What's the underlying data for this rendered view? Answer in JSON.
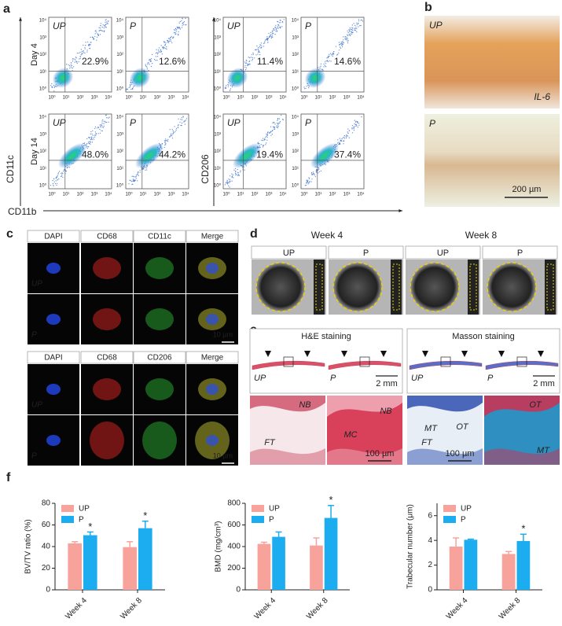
{
  "panel_labels": [
    "a",
    "b",
    "c",
    "d",
    "e",
    "f"
  ],
  "flow": {
    "row_labels": [
      "Day 4",
      "Day 14"
    ],
    "y_markers": [
      "CD11c",
      "CD206"
    ],
    "x_marker": "CD11b",
    "tick_labels": [
      "10⁰",
      "10¹",
      "10²",
      "10³",
      "10⁴"
    ],
    "plots": [
      [
        {
          "group": "UP",
          "percent": "22.9%"
        },
        {
          "group": "P",
          "percent": "12.6%"
        },
        {
          "group": "UP",
          "percent": "11.4%"
        },
        {
          "group": "P",
          "percent": "14.6%"
        }
      ],
      [
        {
          "group": "UP",
          "percent": "48.0%"
        },
        {
          "group": "P",
          "percent": "44.2%"
        },
        {
          "group": "UP",
          "percent": "19.4%"
        },
        {
          "group": "P",
          "percent": "37.4%"
        }
      ]
    ]
  },
  "histology": {
    "groups": [
      "UP",
      "P"
    ],
    "stain": "IL-6",
    "scale": "200 µm"
  },
  "immuno": [
    {
      "headers": [
        "DAPI",
        "CD68",
        "CD11c",
        "Merge"
      ],
      "rows": [
        "UP",
        "P"
      ],
      "scale": "10 µm"
    },
    {
      "headers": [
        "DAPI",
        "CD68",
        "CD206",
        "Merge"
      ],
      "rows": [
        "UP",
        "P"
      ],
      "scale": "10 µm"
    }
  ],
  "micro_ct": {
    "weeks": [
      "Week 4",
      "Week 8"
    ],
    "groups": [
      "UP",
      "P",
      "UP",
      "P"
    ]
  },
  "staining": [
    {
      "title": "H&E staining",
      "groups": [
        "UP",
        "P"
      ],
      "scale_low": "2 mm",
      "scale_high": "100 µm",
      "tissue_labels": [
        [
          "NB",
          "FT"
        ],
        [
          "NB",
          "MC"
        ]
      ]
    },
    {
      "title": "Masson staining",
      "groups": [
        "UP",
        "P"
      ],
      "scale_low": "2 mm",
      "scale_high": "100 µm",
      "tissue_labels": [
        [
          "MT",
          "OT",
          "FT"
        ],
        [
          "OT",
          "MT"
        ]
      ]
    }
  ],
  "chart_data": [
    {
      "type": "bar",
      "ylabel": "BV/TV ratio (%)",
      "categories": [
        "Week 4",
        "Week 8"
      ],
      "ylim": [
        0,
        80
      ],
      "yticks": [
        0,
        20,
        40,
        60,
        80
      ],
      "legend": "top-left",
      "series": [
        {
          "name": "UP",
          "color": "#f8a29c",
          "values": [
            43,
            39.5
          ],
          "errors": [
            1.5,
            5
          ]
        },
        {
          "name": "P",
          "color": "#1badef",
          "values": [
            50.5,
            57
          ],
          "errors": [
            3,
            6.5
          ],
          "significance": [
            "*",
            "*"
          ]
        }
      ]
    },
    {
      "type": "bar",
      "ylabel": "BMD (mg/cm³)",
      "categories": [
        "Week 4",
        "Week 8"
      ],
      "ylim": [
        0,
        800
      ],
      "yticks": [
        0,
        200,
        400,
        600,
        800
      ],
      "legend": "top-left",
      "series": [
        {
          "name": "UP",
          "color": "#f8a29c",
          "values": [
            425,
            410
          ],
          "errors": [
            15,
            70
          ]
        },
        {
          "name": "P",
          "color": "#1badef",
          "values": [
            490,
            665
          ],
          "errors": [
            45,
            115
          ],
          "significance": [
            null,
            "*"
          ]
        }
      ]
    },
    {
      "type": "bar",
      "ylabel": "Trabecular number (μm)",
      "categories": [
        "Week 4",
        "Week 8"
      ],
      "ylim": [
        0,
        7
      ],
      "yticks": [
        0,
        2,
        4,
        6
      ],
      "legend": "top-left",
      "series": [
        {
          "name": "UP",
          "color": "#f8a29c",
          "values": [
            3.5,
            2.9
          ],
          "errors": [
            0.7,
            0.2
          ]
        },
        {
          "name": "P",
          "color": "#1badef",
          "values": [
            4.05,
            3.95
          ],
          "errors": [
            0.05,
            0.55
          ],
          "significance": [
            null,
            "*"
          ]
        }
      ]
    }
  ]
}
